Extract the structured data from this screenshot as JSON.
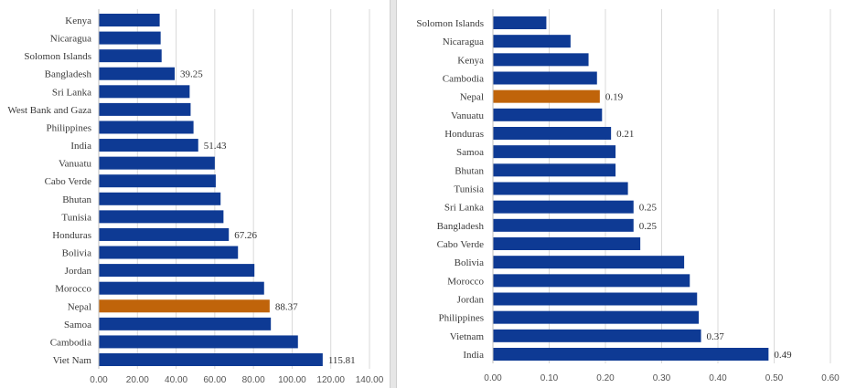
{
  "chart_data": [
    {
      "type": "bar",
      "orientation": "horizontal",
      "categories": [
        "Kenya",
        "Nicaragua",
        "Solomon Islands",
        "Bangladesh",
        "Sri Lanka",
        "West Bank and Gaza",
        "Philippines",
        "India",
        "Vanuatu",
        "Cabo Verde",
        "Bhutan",
        "Tunisia",
        "Honduras",
        "Bolivia",
        "Jordan",
        "Morocco",
        "Nepal",
        "Samoa",
        "Cambodia",
        "Viet Nam"
      ],
      "values": [
        31.5,
        32,
        32.5,
        39.25,
        47,
        47.5,
        49,
        51.43,
        60,
        60.5,
        63,
        64.5,
        67.26,
        72,
        80.5,
        85.5,
        88.37,
        89,
        103,
        115.81
      ],
      "data_labels": {
        "3": "39.25",
        "7": "51.43",
        "12": "67.26",
        "16": "88.37",
        "19": "115.81"
      },
      "highlight": "Nepal",
      "xlim": [
        0,
        140
      ],
      "ticks": [
        "0.00",
        "20.00",
        "40.00",
        "60.00",
        "80.00",
        "100.00",
        "120.00",
        "140.00"
      ],
      "bar_color": "#0e3a94",
      "highlight_color": "#c0640a",
      "grid": true
    },
    {
      "type": "bar",
      "orientation": "horizontal",
      "categories": [
        "Solomon Islands",
        "Nicaragua",
        "Kenya",
        "Cambodia",
        "Nepal",
        "Vanuatu",
        "Honduras",
        "Samoa",
        "Bhutan",
        "Tunisia",
        "Sri Lanka",
        "Bangladesh",
        "Cabo Verde",
        "Bolivia",
        "Morocco",
        "Jordan",
        "Philippines",
        "Vietnam",
        "India"
      ],
      "values": [
        0.095,
        0.138,
        0.17,
        0.185,
        0.19,
        0.194,
        0.21,
        0.218,
        0.218,
        0.24,
        0.25,
        0.25,
        0.262,
        0.34,
        0.35,
        0.363,
        0.366,
        0.37,
        0.49
      ],
      "data_labels": {
        "4": "0.19",
        "6": "0.21",
        "10": "0.25",
        "11": "0.25",
        "17": "0.37",
        "18": "0.49"
      },
      "highlight": "Nepal",
      "xlim": [
        0,
        0.6
      ],
      "ticks": [
        "0.00",
        "0.10",
        "0.20",
        "0.30",
        "0.40",
        "0.50",
        "0.60"
      ],
      "bar_color": "#0e3a94",
      "highlight_color": "#c0640a",
      "grid": true
    }
  ]
}
